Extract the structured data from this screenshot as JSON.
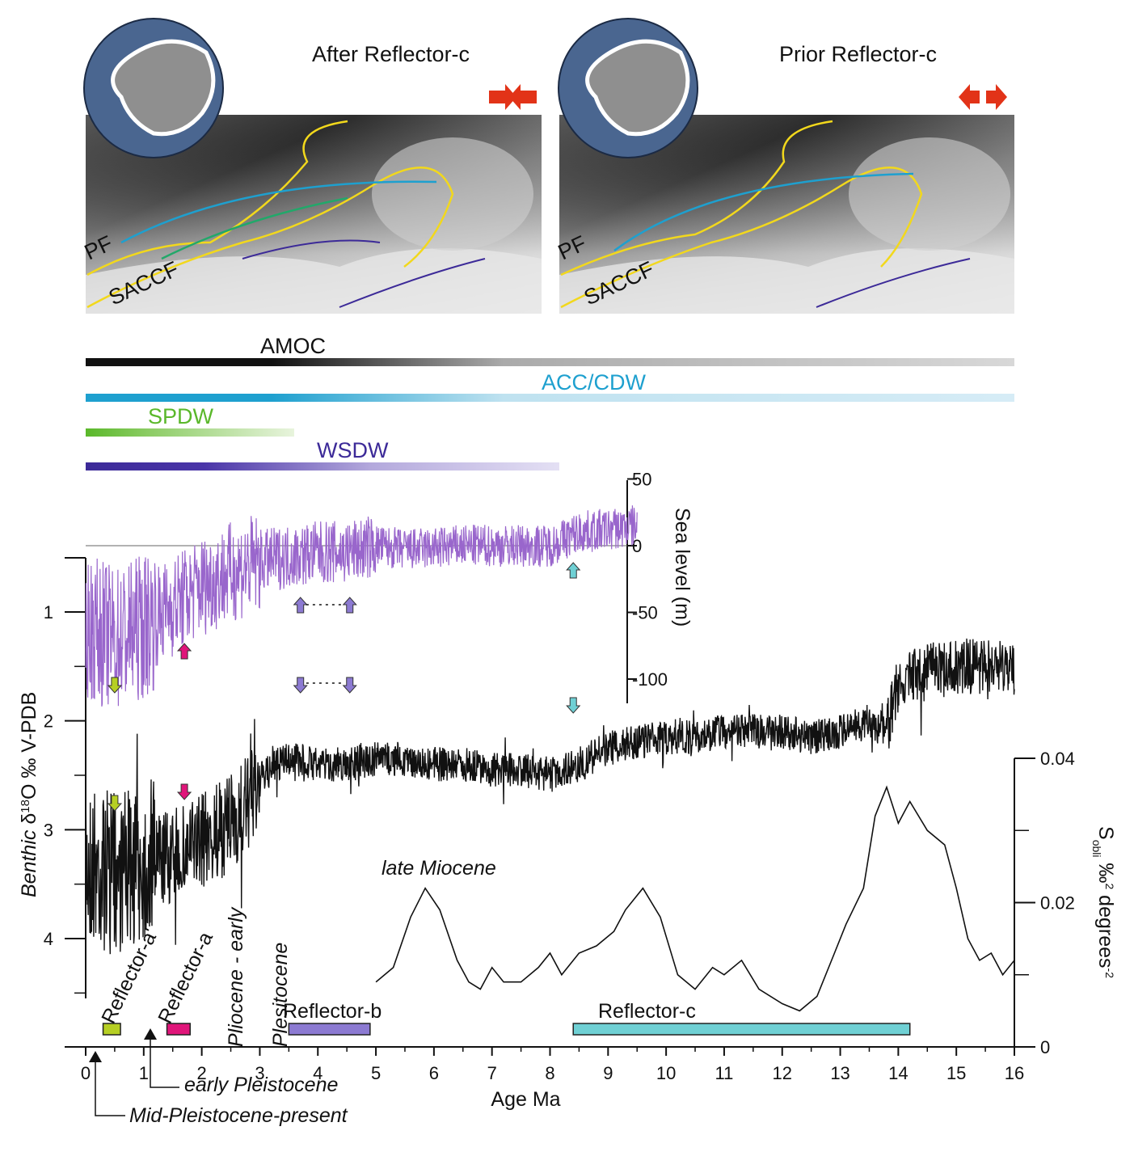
{
  "panels": {
    "left": {
      "title": "After Reflector-c",
      "front_labels": [
        "PF",
        "SACCF"
      ]
    },
    "right": {
      "title": "Prior Reflector-c",
      "front_labels": [
        "PF",
        "SACCF"
      ]
    }
  },
  "colors": {
    "amoc": "#111111",
    "acc": "#1ea0cf",
    "spdw": "#5ab82a",
    "wsdw": "#3c2a98",
    "sea_level": "#9966cc",
    "benthic": "#111111",
    "front_line": "#f2d81c",
    "reflector_a_prime": "#b6cf24",
    "reflector_a": "#e0157a",
    "reflector_b": "#8c7ad2",
    "reflector_c": "#6fd0d4",
    "ocean_circle": "#4a6690"
  },
  "water_mass_bars": [
    {
      "label": "AMOC",
      "color": "#111111",
      "text_color": "#111111"
    },
    {
      "label": "ACC/CDW",
      "color": "#1ea0cf",
      "text_color": "#1ea0cf"
    },
    {
      "label": "SPDW",
      "color": "#5ab82a",
      "text_color": "#5ab82a"
    },
    {
      "label": "WSDW",
      "color": "#3c2a98",
      "text_color": "#3c2a98"
    }
  ],
  "chart_data": [
    {
      "type": "line",
      "name_printed": "Benthic δ18O ‰ V-PDB",
      "ylabel": "Benthic δ18O ‰ V-PDB",
      "ylabel_parts": {
        "main": "Benthic δ",
        "sup": "18",
        "rest": "O ‰ V-PDB"
      },
      "ylim": [
        4.5,
        0.5
      ],
      "yticks": [
        "1",
        "2",
        "3",
        "4"
      ],
      "xlabel": "Age Ma",
      "xlim": [
        0,
        16
      ],
      "xticks": [
        "0",
        "1",
        "2",
        "3",
        "4",
        "5",
        "6",
        "7",
        "8",
        "9",
        "10",
        "11",
        "12",
        "13",
        "14",
        "15",
        "16"
      ],
      "x": [
        0.0,
        0.5,
        1.0,
        1.5,
        2.0,
        2.5,
        2.8,
        3.0,
        3.3,
        3.5,
        4.0,
        4.5,
        5.0,
        5.5,
        6.0,
        6.5,
        7.0,
        7.5,
        8.0,
        8.5,
        9.0,
        9.5,
        10.0,
        10.5,
        11.0,
        11.5,
        12.0,
        12.5,
        13.0,
        13.5,
        13.8,
        14.0,
        14.5,
        15.0,
        15.5,
        16.0
      ],
      "values": [
        3.3,
        3.4,
        3.3,
        3.25,
        3.1,
        2.95,
        2.75,
        2.55,
        2.4,
        2.35,
        2.4,
        2.4,
        2.35,
        2.35,
        2.4,
        2.4,
        2.45,
        2.45,
        2.5,
        2.4,
        2.25,
        2.2,
        2.15,
        2.15,
        2.1,
        2.1,
        2.1,
        2.15,
        2.1,
        2.0,
        2.1,
        1.65,
        1.55,
        1.5,
        1.5,
        1.5
      ]
    },
    {
      "type": "line",
      "ylabel": "Sea level (m)",
      "ylim": [
        -130,
        50
      ],
      "yticks": [
        "50",
        "0",
        "-50",
        "-100"
      ],
      "x": [
        0.0,
        0.5,
        1.0,
        1.5,
        2.0,
        2.5,
        3.0,
        3.5,
        4.0,
        4.5,
        5.0,
        5.5,
        6.0,
        6.5,
        7.0,
        7.5,
        8.0,
        8.5,
        9.0,
        9.5
      ],
      "values": [
        -60,
        -70,
        -60,
        -45,
        -30,
        -20,
        -12,
        -8,
        -5,
        -5,
        0,
        -3,
        -2,
        0,
        0,
        0,
        0,
        10,
        12,
        15
      ]
    },
    {
      "type": "line",
      "ylabel": "Sobli ‰2 degrees-2",
      "ylabel_parts": {
        "main": "S",
        "sub": "obli",
        "mid": " ‰",
        "sup": "2",
        "rest": " degrees",
        "sup2": "-2"
      },
      "ylim": [
        0,
        0.04
      ],
      "yticks": [
        "0.04",
        "0.02",
        "0"
      ],
      "x": [
        5.0,
        5.3,
        5.6,
        5.85,
        6.1,
        6.4,
        6.6,
        6.8,
        7.0,
        7.2,
        7.5,
        7.8,
        8.0,
        8.2,
        8.5,
        8.8,
        9.1,
        9.3,
        9.6,
        9.9,
        10.2,
        10.5,
        10.8,
        11.0,
        11.3,
        11.6,
        12.0,
        12.3,
        12.6,
        12.9,
        13.1,
        13.4,
        13.6,
        13.8,
        14.0,
        14.2,
        14.5,
        14.8,
        15.0,
        15.2,
        15.4,
        15.6,
        15.8,
        16.0
      ],
      "values": [
        0.009,
        0.011,
        0.018,
        0.022,
        0.019,
        0.012,
        0.009,
        0.008,
        0.011,
        0.009,
        0.009,
        0.011,
        0.013,
        0.01,
        0.013,
        0.014,
        0.016,
        0.019,
        0.022,
        0.018,
        0.01,
        0.008,
        0.011,
        0.01,
        0.012,
        0.008,
        0.006,
        0.005,
        0.007,
        0.013,
        0.017,
        0.022,
        0.032,
        0.036,
        0.031,
        0.034,
        0.03,
        0.028,
        0.022,
        0.015,
        0.012,
        0.013,
        0.01,
        0.012
      ]
    }
  ],
  "annotations": {
    "late_miocene": "late Miocene",
    "plio_line1": "Pliocene - early",
    "plio_line2": "Plesitocene",
    "early_pleistocene": "early Pleistocene",
    "mid_pleistocene": "Mid-Pleistocene-present",
    "reflector_a_prime": "Reflector-a'",
    "reflector_a": "Reflector-a",
    "reflector_b": "Reflector-b",
    "reflector_c": "Reflector-c"
  },
  "reflector_ranges": [
    {
      "label": "Reflector-a'",
      "from": 0.3,
      "to": 0.6
    },
    {
      "label": "Reflector-a",
      "from": 1.4,
      "to": 1.8
    },
    {
      "label": "Reflector-b",
      "from": 3.5,
      "to": 4.9
    },
    {
      "label": "Reflector-c",
      "from": 8.4,
      "to": 14.2
    }
  ]
}
